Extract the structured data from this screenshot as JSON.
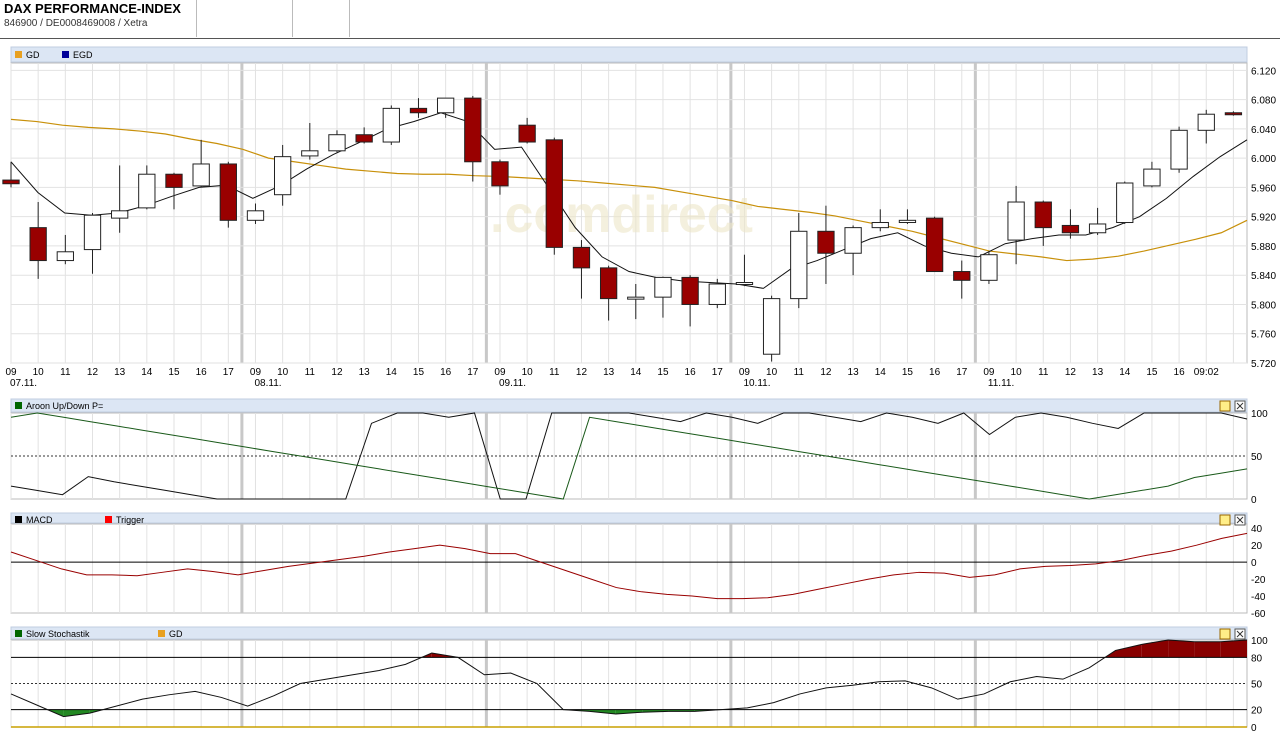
{
  "header": {
    "title": "DAX PERFORMANCE-INDEX",
    "subtitle": "846900 / DE0008469008 / Xetra"
  },
  "watermark": ".comdirect",
  "colors": {
    "up": "#ffffff",
    "down": "#990000",
    "gd": "#c8900a",
    "egd": "#000099",
    "macd": "#000000",
    "trigger": "#990000",
    "stoch_green": "#228822",
    "stoch_red": "#880000"
  },
  "chart_data": [
    {
      "type": "candlestick",
      "legend": [
        {
          "name": "GD",
          "color": "#e8a020"
        },
        {
          "name": "EGD",
          "color": "#000099"
        }
      ],
      "ylim": [
        5720,
        6130
      ],
      "yticks": [
        "6.120",
        "6.080",
        "6.040",
        "6.000",
        "5.960",
        "5.920",
        "5.880",
        "5.840",
        "5.800",
        "5.760",
        "5.720"
      ],
      "ytick_values": [
        6120,
        6080,
        6040,
        6000,
        5960,
        5920,
        5880,
        5840,
        5800,
        5760,
        5720
      ],
      "xticks": [
        {
          "i": 0,
          "label": "09",
          "date": "07.11."
        },
        {
          "i": 1,
          "label": "10"
        },
        {
          "i": 2,
          "label": "11"
        },
        {
          "i": 3,
          "label": "12"
        },
        {
          "i": 4,
          "label": "13"
        },
        {
          "i": 5,
          "label": "14"
        },
        {
          "i": 6,
          "label": "15"
        },
        {
          "i": 7,
          "label": "16"
        },
        {
          "i": 8,
          "label": "17"
        },
        {
          "i": 9,
          "label": "09",
          "date": "08.11."
        },
        {
          "i": 10,
          "label": "10"
        },
        {
          "i": 11,
          "label": "11"
        },
        {
          "i": 12,
          "label": "12"
        },
        {
          "i": 13,
          "label": "13"
        },
        {
          "i": 14,
          "label": "14"
        },
        {
          "i": 15,
          "label": "15"
        },
        {
          "i": 16,
          "label": "16"
        },
        {
          "i": 17,
          "label": "17"
        },
        {
          "i": 18,
          "label": "09",
          "date": "09.11."
        },
        {
          "i": 19,
          "label": "10"
        },
        {
          "i": 20,
          "label": "11"
        },
        {
          "i": 21,
          "label": "12"
        },
        {
          "i": 22,
          "label": "13"
        },
        {
          "i": 23,
          "label": "14"
        },
        {
          "i": 24,
          "label": "15"
        },
        {
          "i": 25,
          "label": "16"
        },
        {
          "i": 26,
          "label": "17"
        },
        {
          "i": 27,
          "label": "09",
          "date": "10.11."
        },
        {
          "i": 28,
          "label": "10"
        },
        {
          "i": 29,
          "label": "11"
        },
        {
          "i": 30,
          "label": "12"
        },
        {
          "i": 31,
          "label": "13"
        },
        {
          "i": 32,
          "label": "14"
        },
        {
          "i": 33,
          "label": "15"
        },
        {
          "i": 34,
          "label": "16"
        },
        {
          "i": 35,
          "label": "17"
        },
        {
          "i": 36,
          "label": "09",
          "date": "11.11."
        },
        {
          "i": 37,
          "label": "10"
        },
        {
          "i": 38,
          "label": "11"
        },
        {
          "i": 39,
          "label": "12"
        },
        {
          "i": 40,
          "label": "13"
        },
        {
          "i": 41,
          "label": "14"
        },
        {
          "i": 42,
          "label": "15"
        },
        {
          "i": 43,
          "label": "16"
        },
        {
          "i": 44,
          "label": "09:02"
        }
      ],
      "candles": [
        {
          "o": 5970,
          "h": 5995,
          "l": 5960,
          "c": 5965
        },
        {
          "o": 5905,
          "h": 5940,
          "l": 5835,
          "c": 5860
        },
        {
          "o": 5860,
          "h": 5895,
          "l": 5855,
          "c": 5872
        },
        {
          "o": 5875,
          "h": 5925,
          "l": 5842,
          "c": 5922
        },
        {
          "o": 5918,
          "h": 5990,
          "l": 5898,
          "c": 5928
        },
        {
          "o": 5932,
          "h": 5990,
          "l": 5930,
          "c": 5978
        },
        {
          "o": 5978,
          "h": 5980,
          "l": 5930,
          "c": 5960
        },
        {
          "o": 5962,
          "h": 6025,
          "l": 5960,
          "c": 5992
        },
        {
          "o": 5992,
          "h": 5995,
          "l": 5905,
          "c": 5915
        },
        {
          "o": 5915,
          "h": 5938,
          "l": 5910,
          "c": 5928
        },
        {
          "o": 5950,
          "h": 6018,
          "l": 5935,
          "c": 6002
        },
        {
          "o": 6003,
          "h": 6048,
          "l": 5998,
          "c": 6010
        },
        {
          "o": 6010,
          "h": 6038,
          "l": 6008,
          "c": 6032
        },
        {
          "o": 6032,
          "h": 6042,
          "l": 6020,
          "c": 6022
        },
        {
          "o": 6022,
          "h": 6072,
          "l": 6018,
          "c": 6068
        },
        {
          "o": 6068,
          "h": 6082,
          "l": 6055,
          "c": 6062
        },
        {
          "o": 6062,
          "h": 6082,
          "l": 6055,
          "c": 6082
        },
        {
          "o": 6082,
          "h": 6085,
          "l": 5968,
          "c": 5995
        },
        {
          "o": 5995,
          "h": 5998,
          "l": 5950,
          "c": 5962
        },
        {
          "o": 6045,
          "h": 6055,
          "l": 6020,
          "c": 6022
        },
        {
          "o": 6025,
          "h": 6028,
          "l": 5868,
          "c": 5878
        },
        {
          "o": 5878,
          "h": 5888,
          "l": 5808,
          "c": 5850
        },
        {
          "o": 5850,
          "h": 5853,
          "l": 5778,
          "c": 5808
        },
        {
          "o": 5808,
          "h": 5828,
          "l": 5780,
          "c": 5810
        },
        {
          "o": 5810,
          "h": 5838,
          "l": 5782,
          "c": 5837
        },
        {
          "o": 5837,
          "h": 5840,
          "l": 5770,
          "c": 5800
        },
        {
          "o": 5800,
          "h": 5835,
          "l": 5795,
          "c": 5828
        },
        {
          "o": 5828,
          "h": 5868,
          "l": 5825,
          "c": 5830
        },
        {
          "o": 5732,
          "h": 5812,
          "l": 5722,
          "c": 5808
        },
        {
          "o": 5808,
          "h": 5925,
          "l": 5795,
          "c": 5900
        },
        {
          "o": 5900,
          "h": 5935,
          "l": 5828,
          "c": 5870
        },
        {
          "o": 5870,
          "h": 5908,
          "l": 5840,
          "c": 5905
        },
        {
          "o": 5905,
          "h": 5930,
          "l": 5900,
          "c": 5912
        },
        {
          "o": 5912,
          "h": 5930,
          "l": 5910,
          "c": 5915
        },
        {
          "o": 5918,
          "h": 5920,
          "l": 5845,
          "c": 5845
        },
        {
          "o": 5845,
          "h": 5860,
          "l": 5808,
          "c": 5833
        },
        {
          "o": 5833,
          "h": 5872,
          "l": 5828,
          "c": 5868
        },
        {
          "o": 5888,
          "h": 5962,
          "l": 5855,
          "c": 5940
        },
        {
          "o": 5940,
          "h": 5942,
          "l": 5880,
          "c": 5905
        },
        {
          "o": 5908,
          "h": 5930,
          "l": 5890,
          "c": 5898
        },
        {
          "o": 5898,
          "h": 5932,
          "l": 5895,
          "c": 5910
        },
        {
          "o": 5912,
          "h": 5968,
          "l": 5910,
          "c": 5966
        },
        {
          "o": 5962,
          "h": 5995,
          "l": 5960,
          "c": 5985
        },
        {
          "o": 5985,
          "h": 6043,
          "l": 5980,
          "c": 6038
        },
        {
          "o": 6038,
          "h": 6066,
          "l": 6020,
          "c": 6060
        },
        {
          "o": 6062,
          "h": 6064,
          "l": 6058,
          "c": 6060
        }
      ],
      "series": [
        {
          "name": "GD",
          "values": [
            6053,
            6050,
            6045,
            6042,
            6040,
            6037,
            6033,
            6026,
            6020,
            6012,
            6000,
            5995,
            5990,
            5985,
            5982,
            5979,
            5978,
            5978,
            5976,
            5975,
            5973,
            5971,
            5969,
            5966,
            5963,
            5960,
            5954,
            5948,
            5942,
            5934,
            5930,
            5926,
            5921,
            5914,
            5907,
            5900,
            5891,
            5882,
            5873,
            5869,
            5865,
            5860,
            5862,
            5866,
            5873,
            5881,
            5889,
            5898,
            5915
          ]
        },
        {
          "name": "EGD",
          "values": [
            5995,
            5953,
            5925,
            5922,
            5925,
            5935,
            5948,
            5960,
            5963,
            5945,
            5962,
            5985,
            6005,
            6022,
            6040,
            6050,
            6062,
            6050,
            6012,
            6015,
            5960,
            5905,
            5865,
            5845,
            5837,
            5832,
            5830,
            5828,
            5822,
            5848,
            5860,
            5875,
            5890,
            5898,
            5880,
            5870,
            5865,
            5883,
            5890,
            5895,
            5895,
            5905,
            5920,
            5945,
            5975,
            6002,
            6025
          ]
        }
      ]
    },
    {
      "type": "line",
      "title": "Aroon Up/Down P=",
      "ylim": [
        0,
        100
      ],
      "yticks": [
        "100",
        "50",
        "0"
      ],
      "series": [
        {
          "name": "Aroon Up",
          "values": [
            15,
            10,
            5,
            26,
            20,
            15,
            10,
            5,
            0,
            0,
            0,
            0,
            0,
            0,
            88,
            100,
            100,
            95,
            100,
            0,
            0,
            100,
            100,
            100,
            100,
            95,
            90,
            100,
            95,
            88,
            100,
            100,
            95,
            90,
            100,
            95,
            88,
            100,
            75,
            95,
            100,
            95,
            88,
            82,
            100,
            100,
            100,
            100,
            93
          ]
        },
        {
          "name": "Aroon Down",
          "values": [
            95,
            100,
            95,
            90,
            85,
            80,
            75,
            70,
            65,
            60,
            55,
            50,
            45,
            40,
            35,
            30,
            25,
            20,
            15,
            10,
            5,
            0,
            95,
            90,
            85,
            80,
            75,
            70,
            65,
            60,
            55,
            50,
            45,
            40,
            35,
            30,
            25,
            20,
            15,
            10,
            5,
            0,
            5,
            10,
            15,
            25,
            30,
            35
          ]
        }
      ]
    },
    {
      "type": "line",
      "ylim": [
        -60,
        45
      ],
      "yticks": [
        "40",
        "20",
        "0",
        "-20",
        "-40",
        "-60"
      ],
      "ytick_values": [
        40,
        20,
        0,
        -20,
        -40,
        -60
      ],
      "legend": [
        {
          "name": "MACD",
          "color": "#000000"
        },
        {
          "name": "Trigger",
          "color": "#ff0000"
        }
      ],
      "series": [
        {
          "name": "Trigger",
          "values": [
            12,
            2,
            -8,
            -15,
            -15,
            -16,
            -12,
            -8,
            -11,
            -15,
            -10,
            -5,
            -1,
            3,
            7,
            12,
            16,
            20,
            16,
            10,
            10,
            0,
            -10,
            -20,
            -30,
            -35,
            -38,
            -40,
            -43,
            -43,
            -42,
            -38,
            -32,
            -26,
            -20,
            -15,
            -12,
            -13,
            -18,
            -15,
            -8,
            -5,
            -4,
            -2,
            2,
            8,
            13,
            20,
            28,
            34
          ]
        }
      ]
    },
    {
      "type": "area",
      "legend": [
        {
          "name": "Slow Stochastik",
          "color": "#006600"
        },
        {
          "name": "GD",
          "color": "#e8a020"
        }
      ],
      "ylim": [
        0,
        100
      ],
      "yticks": [
        "100",
        "80",
        "50",
        "20",
        "0"
      ],
      "ytick_values": [
        100,
        80,
        50,
        20,
        0
      ],
      "series": [
        {
          "name": "Slow Stochastik",
          "values": [
            38,
            25,
            12,
            16,
            24,
            32,
            37,
            41,
            34,
            24,
            36,
            50,
            55,
            60,
            65,
            72,
            85,
            80,
            60,
            62,
            50,
            20,
            18,
            15,
            17,
            18,
            18,
            20,
            22,
            28,
            38,
            45,
            48,
            52,
            53,
            45,
            32,
            38,
            52,
            58,
            55,
            68,
            88,
            95,
            100,
            98,
            98,
            100
          ]
        }
      ]
    }
  ]
}
